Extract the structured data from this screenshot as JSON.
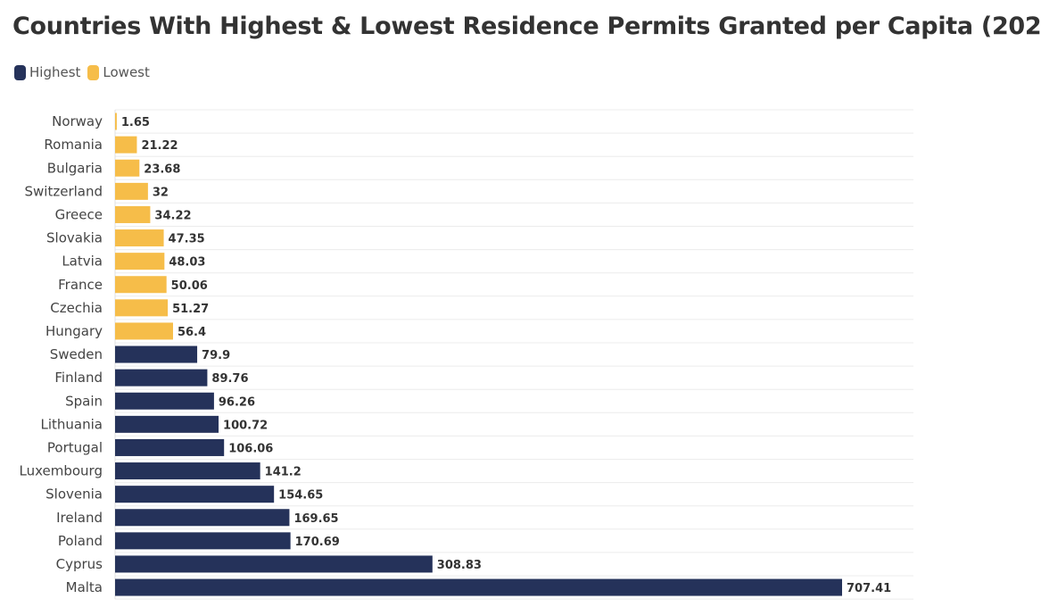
{
  "chart_data": {
    "type": "bar",
    "orientation": "horizontal",
    "title": "Countries With Highest & Lowest Residence Permits Granted per Capita (202",
    "legend": [
      {
        "name": "Highest",
        "color": "#25325a"
      },
      {
        "name": "Lowest",
        "color": "#f6bd49"
      }
    ],
    "categories": [
      "Norway",
      "Romania",
      "Bulgaria",
      "Switzerland",
      "Greece",
      "Slovakia",
      "Latvia",
      "France",
      "Czechia",
      "Hungary",
      "Sweden",
      "Finland",
      "Spain",
      "Lithuania",
      "Portugal",
      "Luxembourg",
      "Slovenia",
      "Ireland",
      "Poland",
      "Cyprus",
      "Malta"
    ],
    "values": [
      1.65,
      21.22,
      23.68,
      32,
      34.22,
      47.35,
      48.03,
      50.06,
      51.27,
      56.4,
      79.9,
      89.76,
      96.26,
      100.72,
      106.06,
      141.2,
      154.65,
      169.65,
      170.69,
      308.83,
      707.41
    ],
    "value_labels": [
      "1.65",
      "21.22",
      "23.68",
      "32",
      "34.22",
      "47.35",
      "48.03",
      "50.06",
      "51.27",
      "56.4",
      "79.9",
      "89.76",
      "96.26",
      "100.72",
      "106.06",
      "141.2",
      "154.65",
      "169.65",
      "170.69",
      "308.83",
      "707.41"
    ],
    "groups": [
      "Lowest",
      "Lowest",
      "Lowest",
      "Lowest",
      "Lowest",
      "Lowest",
      "Lowest",
      "Lowest",
      "Lowest",
      "Lowest",
      "Highest",
      "Highest",
      "Highest",
      "Highest",
      "Highest",
      "Highest",
      "Highest",
      "Highest",
      "Highest",
      "Highest",
      "Highest"
    ],
    "xlim": [
      0,
      707.41
    ],
    "grid": true
  }
}
